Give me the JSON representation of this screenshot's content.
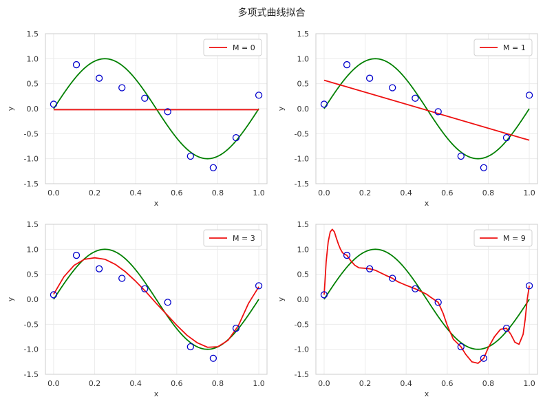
{
  "figure": {
    "title": "多项式曲线拟合"
  },
  "chart_data": [
    {
      "type": "line",
      "xlabel": "x",
      "ylabel": "y",
      "xlim": [
        -0.04,
        1.04
      ],
      "ylim": [
        -1.5,
        1.5
      ],
      "xticks": [
        "0.0",
        "0.2",
        "0.4",
        "0.6",
        "0.8",
        "1.0"
      ],
      "yticks": [
        "-1.5",
        "-1.0",
        "-0.5",
        "0.0",
        "0.5",
        "1.0",
        "1.5"
      ],
      "grid": true,
      "legend_position": "top-right",
      "legend": "M = 0",
      "points": {
        "x": [
          0.0,
          0.111,
          0.222,
          0.333,
          0.444,
          0.556,
          0.667,
          0.778,
          0.889,
          1.0
        ],
        "y": [
          0.09,
          0.88,
          0.61,
          0.42,
          0.21,
          -0.06,
          -0.95,
          -1.18,
          -0.58,
          0.27
        ],
        "color": "#0000cc"
      },
      "true_curve": {
        "function": "sin(2πx)",
        "color": "#008000"
      },
      "fit": {
        "color": "#ee1111",
        "x": [
          0,
          1
        ],
        "y": [
          -0.02,
          -0.02
        ]
      }
    },
    {
      "type": "line",
      "xlabel": "x",
      "ylabel": "y",
      "xlim": [
        -0.04,
        1.04
      ],
      "ylim": [
        -1.5,
        1.5
      ],
      "xticks": [
        "0.0",
        "0.2",
        "0.4",
        "0.6",
        "0.8",
        "1.0"
      ],
      "yticks": [
        "-1.5",
        "-1.0",
        "-0.5",
        "0.0",
        "0.5",
        "1.0",
        "1.5"
      ],
      "grid": true,
      "legend_position": "top-right",
      "legend": "M = 1",
      "points": {
        "x": [
          0.0,
          0.111,
          0.222,
          0.333,
          0.444,
          0.556,
          0.667,
          0.778,
          0.889,
          1.0
        ],
        "y": [
          0.09,
          0.88,
          0.61,
          0.42,
          0.21,
          -0.06,
          -0.95,
          -1.18,
          -0.58,
          0.27
        ],
        "color": "#0000cc"
      },
      "true_curve": {
        "function": "sin(2πx)",
        "color": "#008000"
      },
      "fit": {
        "color": "#ee1111",
        "x": [
          0,
          1
        ],
        "y": [
          0.57,
          -0.63
        ]
      }
    },
    {
      "type": "line",
      "xlabel": "x",
      "ylabel": "y",
      "xlim": [
        -0.04,
        1.04
      ],
      "ylim": [
        -1.5,
        1.5
      ],
      "xticks": [
        "0.0",
        "0.2",
        "0.4",
        "0.6",
        "0.8",
        "1.0"
      ],
      "yticks": [
        "-1.5",
        "-1.0",
        "-0.5",
        "0.0",
        "0.5",
        "1.0",
        "1.5"
      ],
      "grid": true,
      "legend_position": "top-right",
      "legend": "M = 3",
      "points": {
        "x": [
          0.0,
          0.111,
          0.222,
          0.333,
          0.444,
          0.556,
          0.667,
          0.778,
          0.889,
          1.0
        ],
        "y": [
          0.09,
          0.88,
          0.61,
          0.42,
          0.21,
          -0.06,
          -0.95,
          -1.18,
          -0.58,
          0.27
        ],
        "color": "#0000cc"
      },
      "true_curve": {
        "function": "sin(2πx)",
        "color": "#008000"
      },
      "fit": {
        "color": "#ee1111",
        "x": [
          0,
          0.05,
          0.1,
          0.15,
          0.2,
          0.25,
          0.3,
          0.35,
          0.4,
          0.45,
          0.5,
          0.55,
          0.6,
          0.65,
          0.7,
          0.75,
          0.8,
          0.85,
          0.9,
          0.95,
          1.0
        ],
        "y": [
          0.1,
          0.45,
          0.68,
          0.8,
          0.83,
          0.8,
          0.7,
          0.55,
          0.36,
          0.15,
          -0.08,
          -0.3,
          -0.52,
          -0.72,
          -0.87,
          -0.96,
          -0.95,
          -0.82,
          -0.53,
          -0.08,
          0.25
        ]
      }
    },
    {
      "type": "line",
      "xlabel": "x",
      "ylabel": "y",
      "xlim": [
        -0.04,
        1.04
      ],
      "ylim": [
        -1.5,
        1.5
      ],
      "xticks": [
        "0.0",
        "0.2",
        "0.4",
        "0.6",
        "0.8",
        "1.0"
      ],
      "yticks": [
        "-1.5",
        "-1.0",
        "-0.5",
        "0.0",
        "0.5",
        "1.0",
        "1.5"
      ],
      "grid": true,
      "legend_position": "top-right",
      "legend": "M = 9",
      "points": {
        "x": [
          0.0,
          0.111,
          0.222,
          0.333,
          0.444,
          0.556,
          0.667,
          0.778,
          0.889,
          1.0
        ],
        "y": [
          0.09,
          0.88,
          0.61,
          0.42,
          0.21,
          -0.06,
          -0.95,
          -1.18,
          -0.58,
          0.27
        ],
        "color": "#0000cc"
      },
      "true_curve": {
        "function": "sin(2πx)",
        "color": "#008000"
      },
      "fit": {
        "color": "#ee1111",
        "x": [
          0,
          0.005,
          0.01,
          0.02,
          0.03,
          0.04,
          0.05,
          0.06,
          0.07,
          0.08,
          0.09,
          0.1,
          0.111,
          0.13,
          0.15,
          0.17,
          0.2,
          0.222,
          0.25,
          0.28,
          0.3,
          0.333,
          0.36,
          0.4,
          0.444,
          0.47,
          0.5,
          0.52,
          0.556,
          0.58,
          0.6,
          0.63,
          0.667,
          0.69,
          0.72,
          0.75,
          0.778,
          0.8,
          0.83,
          0.86,
          0.889,
          0.91,
          0.93,
          0.95,
          0.97,
          0.98,
          0.99,
          1.0
        ],
        "y": [
          0.09,
          0.4,
          0.75,
          1.15,
          1.35,
          1.4,
          1.35,
          1.22,
          1.1,
          1.0,
          0.93,
          0.9,
          0.88,
          0.77,
          0.68,
          0.63,
          0.62,
          0.61,
          0.58,
          0.52,
          0.48,
          0.42,
          0.35,
          0.28,
          0.21,
          0.16,
          0.1,
          0.04,
          -0.06,
          -0.28,
          -0.52,
          -0.8,
          -0.95,
          -1.1,
          -1.25,
          -1.28,
          -1.18,
          -0.97,
          -0.75,
          -0.6,
          -0.58,
          -0.7,
          -0.86,
          -0.9,
          -0.7,
          -0.4,
          0.0,
          0.27
        ]
      }
    }
  ]
}
